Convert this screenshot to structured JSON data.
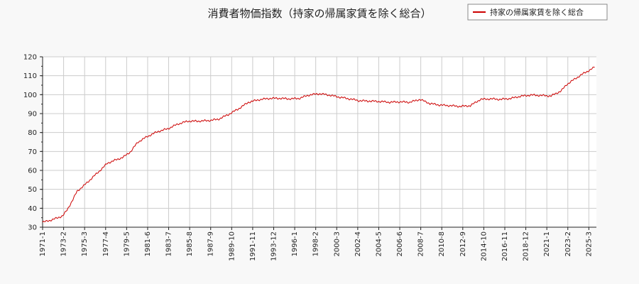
{
  "chart_data": {
    "type": "line",
    "title": "消費者物価指数（持家の帰属家賃を除く総合）",
    "xlabel": "",
    "ylabel": "",
    "ylim": [
      30,
      120
    ],
    "yticks": [
      30,
      40,
      50,
      60,
      70,
      80,
      90,
      100,
      110,
      120
    ],
    "xlim": [
      "1971-01",
      "2025-12"
    ],
    "xticks": [
      "1971-1",
      "1973-2",
      "1975-3",
      "1977-4",
      "1979-5",
      "1981-6",
      "1983-7",
      "1985-8",
      "1987-9",
      "1989-10",
      "1991-11",
      "1993-12",
      "1996-1",
      "1998-2",
      "2000-3",
      "2002-4",
      "2004-5",
      "2006-6",
      "2008-7",
      "2010-8",
      "2012-9",
      "2014-10",
      "2016-11",
      "2018-12",
      "2021-1",
      "2023-2",
      "2025-3"
    ],
    "grid": true,
    "legend_position": "top-right",
    "series": [
      {
        "name": "持家の帰属家賃を除く総合",
        "color": "#cc0000",
        "points": [
          [
            "1971-01",
            32.6
          ],
          [
            "1972-01",
            34.0
          ],
          [
            "1973-01",
            36.0
          ],
          [
            "1973-06",
            39.0
          ],
          [
            "1974-01",
            44.5
          ],
          [
            "1974-06",
            49.0
          ],
          [
            "1975-01",
            51.5
          ],
          [
            "1976-01",
            56.5
          ],
          [
            "1977-01",
            61.5
          ],
          [
            "1977-06",
            63.8
          ],
          [
            "1978-01",
            65.0
          ],
          [
            "1979-01",
            67.0
          ],
          [
            "1979-10",
            70.0
          ],
          [
            "1980-06",
            74.8
          ],
          [
            "1981-06",
            78.0
          ],
          [
            "1982-06",
            80.5
          ],
          [
            "1983-06",
            82.0
          ],
          [
            "1984-06",
            84.5
          ],
          [
            "1985-06",
            86.0
          ],
          [
            "1986-06",
            86.0
          ],
          [
            "1987-06",
            86.3
          ],
          [
            "1988-06",
            87.0
          ],
          [
            "1989-06",
            89.5
          ],
          [
            "1990-06",
            92.5
          ],
          [
            "1991-06",
            96.0
          ],
          [
            "1992-06",
            97.3
          ],
          [
            "1993-06",
            98.0
          ],
          [
            "1994-06",
            98.1
          ],
          [
            "1995-06",
            97.8
          ],
          [
            "1996-06",
            98.0
          ],
          [
            "1997-06",
            99.8
          ],
          [
            "1998-06",
            100.5
          ],
          [
            "1999-06",
            99.8
          ],
          [
            "2000-06",
            98.7
          ],
          [
            "2001-06",
            97.8
          ],
          [
            "2002-06",
            96.8
          ],
          [
            "2003-06",
            96.6
          ],
          [
            "2004-06",
            96.4
          ],
          [
            "2005-06",
            96.0
          ],
          [
            "2006-06",
            96.2
          ],
          [
            "2007-06",
            96.0
          ],
          [
            "2008-06",
            97.5
          ],
          [
            "2009-06",
            95.3
          ],
          [
            "2010-06",
            94.5
          ],
          [
            "2011-06",
            94.2
          ],
          [
            "2012-06",
            93.8
          ],
          [
            "2013-06",
            94.2
          ],
          [
            "2014-06",
            97.5
          ],
          [
            "2015-06",
            97.8
          ],
          [
            "2016-06",
            97.5
          ],
          [
            "2017-06",
            98.0
          ],
          [
            "2018-06",
            99.2
          ],
          [
            "2019-06",
            99.8
          ],
          [
            "2020-06",
            99.6
          ],
          [
            "2021-06",
            99.3
          ],
          [
            "2022-06",
            102.0
          ],
          [
            "2023-01",
            105.5
          ],
          [
            "2023-06",
            107.0
          ],
          [
            "2024-06",
            110.5
          ],
          [
            "2025-06",
            113.5
          ],
          [
            "2025-10",
            114.5
          ]
        ]
      }
    ]
  }
}
